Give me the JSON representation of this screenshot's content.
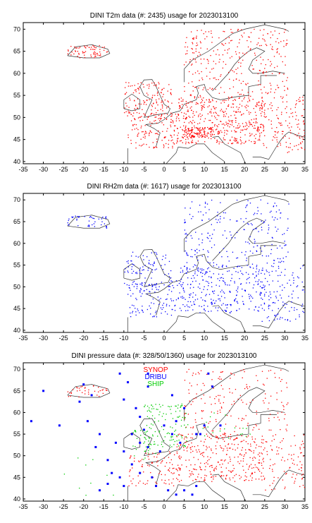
{
  "chart_data": [
    {
      "type": "scatter",
      "title": "DINI T2m data (#: 2435) usage for 2023013100",
      "xlim": [
        -35,
        35
      ],
      "ylim": [
        39.5,
        71.5
      ],
      "xticks": [
        -35,
        -30,
        -25,
        -20,
        -15,
        -10,
        -5,
        0,
        5,
        10,
        15,
        20,
        25,
        30,
        35
      ],
      "yticks": [
        40,
        45,
        50,
        55,
        60,
        65,
        70
      ],
      "series": [
        {
          "color": "#ff0000",
          "count": 2435,
          "regions": [
            {
              "lon": [
                -24,
                -14
              ],
              "lat": [
                63.5,
                66.3
              ],
              "weight": 0.05
            },
            {
              "lon": [
                -10,
                2
              ],
              "lat": [
                50,
                58
              ],
              "weight": 0.1
            },
            {
              "lon": [
                -9,
                3
              ],
              "lat": [
                43,
                51
              ],
              "weight": 0.1
            },
            {
              "lon": [
                3,
                25
              ],
              "lat": [
                44,
                55
              ],
              "weight": 0.35
            },
            {
              "lon": [
                5,
                12
              ],
              "lat": [
                45.5,
                47.8
              ],
              "weight": 0.08
            },
            {
              "lon": [
                5,
                31
              ],
              "lat": [
                55,
                70
              ],
              "weight": 0.22
            },
            {
              "lon": [
                24,
                35
              ],
              "lat": [
                42,
                55
              ],
              "weight": 0.1
            }
          ]
        }
      ]
    },
    {
      "type": "scatter",
      "title": "DINI RH2m data (#: 1617) usage for 2023013100",
      "xlim": [
        -35,
        35
      ],
      "ylim": [
        39.5,
        71.5
      ],
      "xticks": [
        -35,
        -30,
        -25,
        -20,
        -15,
        -10,
        -5,
        0,
        5,
        10,
        15,
        20,
        25,
        30,
        35
      ],
      "yticks": [
        40,
        45,
        50,
        55,
        60,
        65,
        70
      ],
      "series": [
        {
          "color": "#0000ff",
          "count": 1617,
          "regions": [
            {
              "lon": [
                -24,
                -14
              ],
              "lat": [
                63.5,
                66.3
              ],
              "weight": 0.05
            },
            {
              "lon": [
                -10,
                2
              ],
              "lat": [
                50,
                58
              ],
              "weight": 0.1
            },
            {
              "lon": [
                -9,
                3
              ],
              "lat": [
                43,
                51
              ],
              "weight": 0.12
            },
            {
              "lon": [
                3,
                25
              ],
              "lat": [
                44,
                55
              ],
              "weight": 0.35
            },
            {
              "lon": [
                5,
                31
              ],
              "lat": [
                55,
                70
              ],
              "weight": 0.25
            },
            {
              "lon": [
                24,
                35
              ],
              "lat": [
                42,
                55
              ],
              "weight": 0.13
            }
          ]
        }
      ]
    },
    {
      "type": "scatter",
      "title": "DINI pressure data (#: 328/50/1360) usage for 2023013100",
      "xlim": [
        -35,
        35
      ],
      "ylim": [
        39.5,
        71.5
      ],
      "xticks": [
        -35,
        -30,
        -25,
        -20,
        -15,
        -10,
        -5,
        0,
        5,
        10,
        15,
        20,
        25,
        30,
        35
      ],
      "yticks": [
        40,
        45,
        50,
        55,
        60,
        65,
        70
      ],
      "legend": [
        {
          "name": "SYNOP",
          "color": "#ff0000"
        },
        {
          "name": "DRIBU",
          "color": "#0000ff"
        },
        {
          "name": "SHIP",
          "color": "#00cc00"
        }
      ],
      "series": [
        {
          "name": "SYNOP",
          "color": "#ff0000",
          "count": 1360,
          "regions": [
            {
              "lon": [
                -24,
                -14
              ],
              "lat": [
                63.5,
                66.3
              ],
              "weight": 0.05
            },
            {
              "lon": [
                -9,
                3
              ],
              "lat": [
                43,
                51
              ],
              "weight": 0.12
            },
            {
              "lon": [
                3,
                25
              ],
              "lat": [
                44,
                55
              ],
              "weight": 0.45
            },
            {
              "lon": [
                5,
                31
              ],
              "lat": [
                55,
                70
              ],
              "weight": 0.25
            },
            {
              "lon": [
                24,
                35
              ],
              "lat": [
                42,
                55
              ],
              "weight": 0.13
            }
          ]
        },
        {
          "name": "DRIBU",
          "color": "#0000ff",
          "count": 50,
          "points": [
            [
              -30,
              65
            ],
            [
              -33,
              58
            ],
            [
              -26,
              57
            ],
            [
              -21,
              62.5
            ],
            [
              -20,
              66.5
            ],
            [
              -18,
              64
            ],
            [
              -19,
              58
            ],
            [
              -16,
              55
            ],
            [
              -17,
              52
            ],
            [
              -14,
              49
            ],
            [
              -13,
              46
            ],
            [
              -11,
              45
            ],
            [
              -10,
              43
            ],
            [
              -14,
              43.5
            ],
            [
              -16,
              42
            ],
            [
              -10,
              63
            ],
            [
              -7,
              61
            ],
            [
              -6,
              59
            ],
            [
              -5,
              56
            ],
            [
              -8,
              55
            ],
            [
              -12,
              53
            ],
            [
              -10,
              51
            ],
            [
              -8,
              48
            ],
            [
              -6,
              46
            ],
            [
              -3,
              45
            ],
            [
              -2,
              43
            ],
            [
              1,
              42
            ],
            [
              3,
              41
            ],
            [
              5,
              42
            ],
            [
              7,
              41
            ],
            [
              8,
              43
            ],
            [
              -4,
              66
            ],
            [
              -9,
              67
            ],
            [
              -11,
              69
            ],
            [
              -4,
              69
            ],
            [
              2,
              64
            ],
            [
              5,
              61
            ],
            [
              3,
              58
            ],
            [
              0,
              57
            ],
            [
              2,
              55
            ],
            [
              4,
              53
            ],
            [
              -1,
              51
            ],
            [
              -4,
              52
            ],
            [
              -6,
              53
            ],
            [
              8,
              55
            ],
            [
              10,
              57
            ],
            [
              12,
              66
            ],
            [
              11,
              69
            ],
            [
              9,
              55
            ],
            [
              14,
              57
            ]
          ]
        },
        {
          "name": "SHIP",
          "color": "#00cc00",
          "count": 328,
          "regions": [
            {
              "lon": [
                -5,
                6
              ],
              "lat": [
                52,
                62
              ],
              "weight": 0.7
            },
            {
              "lon": [
                -8,
                -2
              ],
              "lat": [
                49,
                56
              ],
              "weight": 0.15
            },
            {
              "lon": [
                8,
                22
              ],
              "lat": [
                54,
                61
              ],
              "weight": 0.1
            },
            {
              "lon": [
                -25,
                -10
              ],
              "lat": [
                40,
                50
              ],
              "weight": 0.05
            }
          ]
        }
      ]
    }
  ]
}
